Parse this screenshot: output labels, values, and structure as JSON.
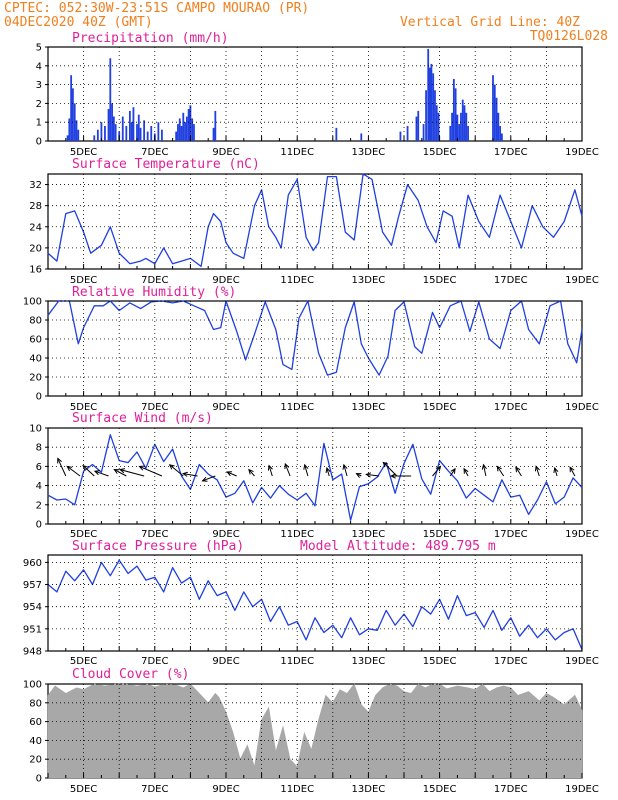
{
  "header": {
    "line1": "CPTEC:   052:30W-23:51S  CAMPO MOURAO (PR)",
    "line2": "04DEC2020 40Z (GMT)",
    "right1": "Vertical Grid Line: 40Z",
    "right2": "TQ0126L028"
  },
  "x_tick_labels": [
    "5DEC",
    "7DEC",
    "9DEC",
    "11DEC",
    "13DEC",
    "15DEC",
    "17DEC",
    "19DEC"
  ],
  "colors": {
    "line": "#2040e0",
    "bar": "#2040e0",
    "cloud": "#a8a8a8",
    "title": "#e0209a",
    "header": "#f08020",
    "arrow": "#000000"
  },
  "chart_data": [
    {
      "type": "bar",
      "title": "Precipitation (mm/h)",
      "ylim": [
        0,
        5
      ],
      "yticks": [
        0,
        1,
        2,
        3,
        4,
        5
      ],
      "grid": true,
      "units": "mm/h",
      "x_range_days": [
        4.0,
        19.0
      ],
      "events": [
        {
          "day": 4.55,
          "value": 0.3
        },
        {
          "day": 4.6,
          "value": 1.2
        },
        {
          "day": 4.65,
          "value": 3.5
        },
        {
          "day": 4.7,
          "value": 2.8
        },
        {
          "day": 4.75,
          "value": 2.0
        },
        {
          "day": 4.8,
          "value": 1.1
        },
        {
          "day": 4.85,
          "value": 0.6
        },
        {
          "day": 5.3,
          "value": 0.3
        },
        {
          "day": 5.4,
          "value": 0.6
        },
        {
          "day": 5.5,
          "value": 1.0
        },
        {
          "day": 5.6,
          "value": 0.8
        },
        {
          "day": 5.7,
          "value": 1.7
        },
        {
          "day": 5.75,
          "value": 4.4
        },
        {
          "day": 5.8,
          "value": 2.0
        },
        {
          "day": 5.85,
          "value": 1.3
        },
        {
          "day": 5.9,
          "value": 0.9
        },
        {
          "day": 6.0,
          "value": 0.5
        },
        {
          "day": 6.1,
          "value": 1.3
        },
        {
          "day": 6.2,
          "value": 0.8
        },
        {
          "day": 6.3,
          "value": 1.6
        },
        {
          "day": 6.35,
          "value": 1.0
        },
        {
          "day": 6.4,
          "value": 1.8
        },
        {
          "day": 6.5,
          "value": 0.9
        },
        {
          "day": 6.55,
          "value": 1.4
        },
        {
          "day": 6.6,
          "value": 0.7
        },
        {
          "day": 6.7,
          "value": 1.1
        },
        {
          "day": 6.8,
          "value": 0.5
        },
        {
          "day": 6.9,
          "value": 0.8
        },
        {
          "day": 7.0,
          "value": 0.4
        },
        {
          "day": 7.1,
          "value": 1.0
        },
        {
          "day": 7.2,
          "value": 0.6
        },
        {
          "day": 7.6,
          "value": 0.5
        },
        {
          "day": 7.65,
          "value": 0.9
        },
        {
          "day": 7.7,
          "value": 1.2
        },
        {
          "day": 7.75,
          "value": 0.8
        },
        {
          "day": 7.8,
          "value": 1.5
        },
        {
          "day": 7.85,
          "value": 1.0
        },
        {
          "day": 7.9,
          "value": 1.3
        },
        {
          "day": 7.95,
          "value": 1.7
        },
        {
          "day": 8.0,
          "value": 1.9
        },
        {
          "day": 8.05,
          "value": 1.2
        },
        {
          "day": 8.1,
          "value": 0.9
        },
        {
          "day": 8.65,
          "value": 0.7
        },
        {
          "day": 8.7,
          "value": 1.6
        },
        {
          "day": 12.1,
          "value": 0.7
        },
        {
          "day": 12.8,
          "value": 0.4
        },
        {
          "day": 13.9,
          "value": 0.5
        },
        {
          "day": 14.1,
          "value": 0.8
        },
        {
          "day": 14.35,
          "value": 1.3
        },
        {
          "day": 14.4,
          "value": 1.6
        },
        {
          "day": 14.55,
          "value": 0.9
        },
        {
          "day": 14.62,
          "value": 2.7
        },
        {
          "day": 14.68,
          "value": 4.9
        },
        {
          "day": 14.72,
          "value": 3.9
        },
        {
          "day": 14.77,
          "value": 4.1
        },
        {
          "day": 14.82,
          "value": 3.6
        },
        {
          "day": 14.87,
          "value": 2.7
        },
        {
          "day": 14.92,
          "value": 1.9
        },
        {
          "day": 14.97,
          "value": 1.5
        },
        {
          "day": 15.3,
          "value": 0.8
        },
        {
          "day": 15.35,
          "value": 1.5
        },
        {
          "day": 15.4,
          "value": 3.3
        },
        {
          "day": 15.45,
          "value": 2.8
        },
        {
          "day": 15.5,
          "value": 1.4
        },
        {
          "day": 15.55,
          "value": 0.9
        },
        {
          "day": 15.6,
          "value": 1.5
        },
        {
          "day": 15.65,
          "value": 2.2
        },
        {
          "day": 15.7,
          "value": 1.9
        },
        {
          "day": 15.75,
          "value": 1.5
        },
        {
          "day": 15.8,
          "value": 0.8
        },
        {
          "day": 16.5,
          "value": 3.5
        },
        {
          "day": 16.55,
          "value": 3.0
        },
        {
          "day": 16.6,
          "value": 2.3
        },
        {
          "day": 16.65,
          "value": 1.5
        },
        {
          "day": 16.7,
          "value": 0.8
        },
        {
          "day": 16.75,
          "value": 0.4
        }
      ]
    },
    {
      "type": "line",
      "title": "Surface Temperature (nC)",
      "ylim": [
        16,
        34
      ],
      "yticks": [
        16,
        20,
        24,
        28,
        32
      ],
      "grid": true,
      "x": [
        4.0,
        4.25,
        4.5,
        4.75,
        5.0,
        5.2,
        5.5,
        5.75,
        6.0,
        6.3,
        6.6,
        6.75,
        7.0,
        7.25,
        7.5,
        7.75,
        8.0,
        8.3,
        8.5,
        8.65,
        8.85,
        9.0,
        9.2,
        9.5,
        9.8,
        10.0,
        10.2,
        10.4,
        10.55,
        10.75,
        11.0,
        11.25,
        11.45,
        11.6,
        11.85,
        12.1,
        12.35,
        12.6,
        12.85,
        13.1,
        13.4,
        13.65,
        13.85,
        14.1,
        14.4,
        14.65,
        14.9,
        15.1,
        15.35,
        15.55,
        15.8,
        16.1,
        16.4,
        16.7,
        17.0,
        17.3,
        17.6,
        17.9,
        18.2,
        18.5,
        18.8,
        19.0
      ],
      "y": [
        19,
        17.5,
        26.5,
        27,
        23,
        19,
        20.5,
        24,
        19,
        17,
        17.5,
        18,
        17,
        20,
        17,
        17.5,
        18,
        16.5,
        24,
        26.5,
        25,
        21,
        19,
        18,
        28,
        31,
        24,
        22,
        20,
        30,
        33,
        22,
        19.5,
        21,
        33.5,
        33.5,
        23,
        21.5,
        34,
        33,
        23,
        20.5,
        26,
        32,
        29,
        24,
        21,
        27,
        26,
        20,
        30,
        25,
        22,
        30,
        25,
        20,
        28,
        24,
        22,
        25,
        31,
        26
      ]
    },
    {
      "type": "line",
      "title": "Relative Humidity (%)",
      "ylim": [
        0,
        100
      ],
      "yticks": [
        0,
        20,
        40,
        60,
        80,
        100
      ],
      "grid": true,
      "x": [
        4.0,
        4.3,
        4.6,
        4.85,
        5.0,
        5.3,
        5.55,
        5.75,
        6.0,
        6.3,
        6.6,
        6.9,
        7.2,
        7.5,
        7.8,
        8.1,
        8.4,
        8.65,
        8.85,
        9.0,
        9.3,
        9.55,
        9.8,
        10.1,
        10.4,
        10.6,
        10.85,
        11.05,
        11.3,
        11.6,
        11.85,
        12.1,
        12.35,
        12.6,
        12.8,
        13.0,
        13.3,
        13.55,
        13.75,
        14.0,
        14.3,
        14.5,
        14.8,
        15.0,
        15.3,
        15.6,
        15.85,
        16.1,
        16.4,
        16.7,
        17.0,
        17.3,
        17.5,
        17.8,
        18.1,
        18.4,
        18.6,
        18.85,
        19.0
      ],
      "y": [
        85,
        100,
        100,
        55,
        72,
        95,
        95,
        100,
        90,
        98,
        92,
        99,
        100,
        98,
        100,
        95,
        90,
        70,
        72,
        100,
        68,
        38,
        65,
        99,
        70,
        33,
        28,
        82,
        100,
        45,
        22,
        25,
        72,
        99,
        55,
        40,
        22,
        42,
        90,
        99,
        52,
        45,
        88,
        72,
        95,
        100,
        68,
        99,
        60,
        50,
        90,
        100,
        70,
        55,
        95,
        100,
        55,
        35,
        70
      ]
    },
    {
      "type": "line",
      "title": "Surface Wind (m/s)",
      "ylim": [
        0,
        10
      ],
      "yticks": [
        0,
        2,
        4,
        6,
        8,
        10
      ],
      "grid": true,
      "x": [
        4.0,
        4.25,
        4.5,
        4.75,
        5.0,
        5.25,
        5.5,
        5.75,
        6.0,
        6.25,
        6.5,
        6.75,
        7.0,
        7.25,
        7.5,
        7.75,
        8.0,
        8.25,
        8.5,
        8.75,
        9.0,
        9.25,
        9.5,
        9.75,
        10.0,
        10.25,
        10.5,
        10.75,
        11.0,
        11.25,
        11.5,
        11.75,
        12.0,
        12.25,
        12.5,
        12.75,
        13.0,
        13.25,
        13.5,
        13.75,
        14.0,
        14.25,
        14.5,
        14.75,
        15.0,
        15.25,
        15.5,
        15.75,
        16.0,
        16.25,
        16.5,
        16.75,
        17.0,
        17.25,
        17.5,
        17.75,
        18.0,
        18.25,
        18.5,
        18.75,
        19.0
      ],
      "y": [
        3,
        2.5,
        2.6,
        2,
        5.5,
        6.2,
        5.4,
        9.3,
        6.6,
        6.4,
        7.5,
        5.8,
        8.3,
        6.5,
        7.8,
        5,
        3.6,
        6.2,
        5.2,
        4.6,
        2.8,
        3.2,
        4.5,
        2.2,
        3.8,
        2.7,
        4,
        3.1,
        2.5,
        3.2,
        1.9,
        8.4,
        4.6,
        5.2,
        0.4,
        3.9,
        4.2,
        4.9,
        6.4,
        3.2,
        6.3,
        8.3,
        4.7,
        3.1,
        6.6,
        5.5,
        4.5,
        2.7,
        3.7,
        3,
        2.3,
        4.6,
        2.8,
        3,
        1,
        2.5,
        4.4,
        2.1,
        2.8,
        4.8,
        3.8
      ],
      "arrows": [
        {
          "day": 4.5,
          "u": -1,
          "v": 2.2
        },
        {
          "day": 4.9,
          "u": -1.6,
          "v": 1.2
        },
        {
          "day": 5.3,
          "u": -1.4,
          "v": 1.3
        },
        {
          "day": 5.7,
          "u": -1.7,
          "v": 0.6
        },
        {
          "day": 6.2,
          "u": -1.5,
          "v": 0.8
        },
        {
          "day": 6.7,
          "u": -3,
          "v": 0.8
        },
        {
          "day": 7.2,
          "u": -2.8,
          "v": 1.2
        },
        {
          "day": 7.8,
          "u": -1.7,
          "v": 1.4
        },
        {
          "day": 8.2,
          "u": -1.8,
          "v": 0.3
        },
        {
          "day": 8.7,
          "u": -1.6,
          "v": -0.6
        },
        {
          "day": 9.3,
          "u": -1.2,
          "v": 0.5
        },
        {
          "day": 9.8,
          "u": -0.7,
          "v": 0.8
        },
        {
          "day": 10.3,
          "u": -0.4,
          "v": 1.3
        },
        {
          "day": 10.8,
          "u": -0.6,
          "v": 1.5
        },
        {
          "day": 11.3,
          "u": -0.4,
          "v": 1.4
        },
        {
          "day": 11.9,
          "u": -0.3,
          "v": 1.0
        },
        {
          "day": 12.4,
          "u": -0.4,
          "v": 1.4
        },
        {
          "day": 12.8,
          "u": -0.6,
          "v": 0.3
        },
        {
          "day": 13.3,
          "u": -1.6,
          "v": 0.2
        },
        {
          "day": 13.8,
          "u": -1.7,
          "v": 1.7
        },
        {
          "day": 14.2,
          "u": -2.5,
          "v": 0
        },
        {
          "day": 14.8,
          "u": 1.0,
          "v": 1.2
        },
        {
          "day": 15.3,
          "u": 0.6,
          "v": 0.9
        },
        {
          "day": 15.8,
          "u": -0.5,
          "v": 0.9
        },
        {
          "day": 16.3,
          "u": -0.3,
          "v": 1.4
        },
        {
          "day": 16.8,
          "u": -0.8,
          "v": 1.2
        },
        {
          "day": 17.3,
          "u": -0.7,
          "v": 1.1
        },
        {
          "day": 17.8,
          "u": -0.4,
          "v": 1.2
        },
        {
          "day": 18.3,
          "u": -0.3,
          "v": 1.0
        },
        {
          "day": 18.8,
          "u": -0.6,
          "v": 1.1
        }
      ]
    },
    {
      "type": "line",
      "title": "Surface Pressure (hPa)",
      "annotation": "Model Altitude: 489.795 m",
      "ylim": [
        948,
        961
      ],
      "yticks": [
        948,
        951,
        954,
        957,
        960
      ],
      "grid": true,
      "x": [
        4.0,
        4.25,
        4.5,
        4.75,
        5.0,
        5.25,
        5.5,
        5.75,
        6.0,
        6.25,
        6.5,
        6.75,
        7.0,
        7.25,
        7.5,
        7.75,
        8.0,
        8.25,
        8.5,
        8.75,
        9.0,
        9.25,
        9.5,
        9.75,
        10.0,
        10.25,
        10.5,
        10.75,
        11.0,
        11.25,
        11.5,
        11.75,
        12.0,
        12.25,
        12.5,
        12.75,
        13.0,
        13.25,
        13.5,
        13.75,
        14.0,
        14.25,
        14.5,
        14.75,
        15.0,
        15.25,
        15.5,
        15.75,
        16.0,
        16.25,
        16.5,
        16.75,
        17.0,
        17.25,
        17.5,
        17.75,
        18.0,
        18.25,
        18.5,
        18.75,
        19.0
      ],
      "y": [
        957,
        956,
        958.8,
        957.5,
        959,
        957,
        960,
        958.2,
        960.3,
        958.5,
        959.5,
        957.6,
        958,
        956,
        959.3,
        957.2,
        958,
        955,
        957.5,
        955.5,
        956,
        953.5,
        956,
        954,
        955,
        952,
        954,
        951.5,
        952,
        949.5,
        952.5,
        950.5,
        951.5,
        949.8,
        952.5,
        950.2,
        951,
        950.8,
        953.5,
        951.5,
        953,
        951.3,
        954,
        953,
        955,
        952.3,
        955.5,
        952.8,
        953.2,
        951.2,
        953.5,
        950.8,
        952.5,
        950,
        951.5,
        949.8,
        951,
        949.5,
        950.5,
        951,
        948.2
      ]
    },
    {
      "type": "area",
      "title": "Cloud Cover (%)",
      "ylim": [
        0,
        100
      ],
      "yticks": [
        0,
        20,
        40,
        60,
        80,
        100
      ],
      "grid": true,
      "x": [
        4.0,
        4.2,
        4.5,
        4.8,
        5.0,
        5.3,
        5.6,
        5.9,
        6.2,
        6.5,
        6.8,
        7.0,
        7.3,
        7.6,
        7.8,
        8.0,
        8.2,
        8.5,
        8.7,
        8.8,
        9.0,
        9.2,
        9.4,
        9.6,
        9.8,
        10.0,
        10.2,
        10.4,
        10.6,
        10.8,
        11.0,
        11.2,
        11.4,
        11.6,
        11.8,
        12.0,
        12.2,
        12.4,
        12.6,
        12.8,
        13.0,
        13.2,
        13.4,
        13.6,
        13.8,
        14.0,
        14.2,
        14.4,
        14.6,
        14.8,
        15.0,
        15.2,
        15.5,
        15.8,
        16.0,
        16.2,
        16.4,
        16.6,
        16.8,
        17.0,
        17.2,
        17.5,
        17.8,
        18.0,
        18.2,
        18.5,
        18.8,
        19.0
      ],
      "y": [
        88,
        98,
        90,
        96,
        94,
        100,
        98,
        100,
        100,
        98,
        100,
        97,
        100,
        99,
        96,
        100,
        92,
        80,
        90,
        86,
        70,
        48,
        20,
        35,
        12,
        62,
        75,
        28,
        55,
        20,
        12,
        48,
        30,
        62,
        88,
        80,
        94,
        90,
        100,
        78,
        70,
        88,
        96,
        100,
        98,
        92,
        90,
        100,
        96,
        100,
        100,
        95,
        98,
        96,
        94,
        100,
        92,
        96,
        98,
        96,
        88,
        92,
        82,
        90,
        86,
        78,
        88,
        72
      ]
    }
  ]
}
